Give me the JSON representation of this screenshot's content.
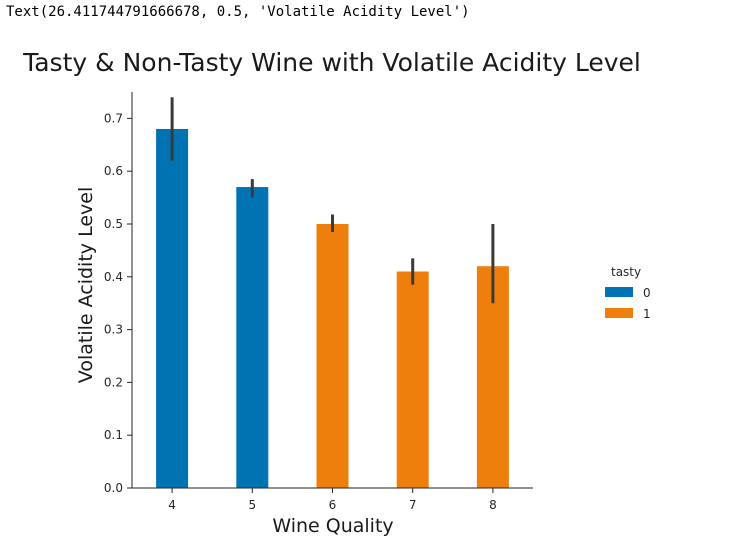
{
  "output_text": "Text(26.411744791666678, 0.5, 'Volatile Acidity Level')",
  "chart_data": {
    "type": "bar",
    "title": "Tasty & Non-Tasty Wine with Volatile Acidity Level",
    "xlabel": "Wine Quality",
    "ylabel": "Volatile Acidity Level",
    "categories": [
      "4",
      "5",
      "6",
      "7",
      "8"
    ],
    "ylim": [
      0,
      0.75
    ],
    "yticks": [
      "0.0",
      "0.1",
      "0.2",
      "0.3",
      "0.4",
      "0.5",
      "0.6",
      "0.7"
    ],
    "legend": {
      "title": "tasty",
      "placement": "right"
    },
    "series": [
      {
        "name": "0",
        "color": "#0173b2",
        "values": [
          0.68,
          0.57,
          null,
          null,
          null
        ],
        "err_low": [
          0.62,
          0.55,
          null,
          null,
          null
        ],
        "err_high": [
          0.74,
          0.585,
          null,
          null,
          null
        ]
      },
      {
        "name": "1",
        "color": "#ef7f0c",
        "values": [
          null,
          null,
          0.5,
          0.41,
          0.42
        ],
        "err_low": [
          null,
          null,
          0.485,
          0.385,
          0.35
        ],
        "err_high": [
          null,
          null,
          0.518,
          0.435,
          0.5
        ]
      }
    ],
    "grid": false
  }
}
